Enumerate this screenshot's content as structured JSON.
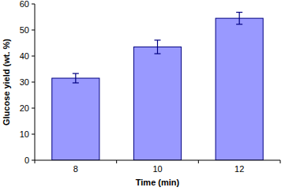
{
  "chart_data": {
    "type": "bar",
    "x_label": "Time (min)",
    "y_label": "Glucose yield (wt. %)",
    "categories": [
      "8",
      "10",
      "12"
    ],
    "values": [
      31.5,
      43.5,
      54.5
    ],
    "errors": [
      1.8,
      2.6,
      2.3
    ],
    "color": "#9999ff",
    "ylim": [
      0,
      60
    ],
    "yticks": [
      0,
      10,
      20,
      30,
      40,
      50,
      60
    ],
    "grid": false
  }
}
